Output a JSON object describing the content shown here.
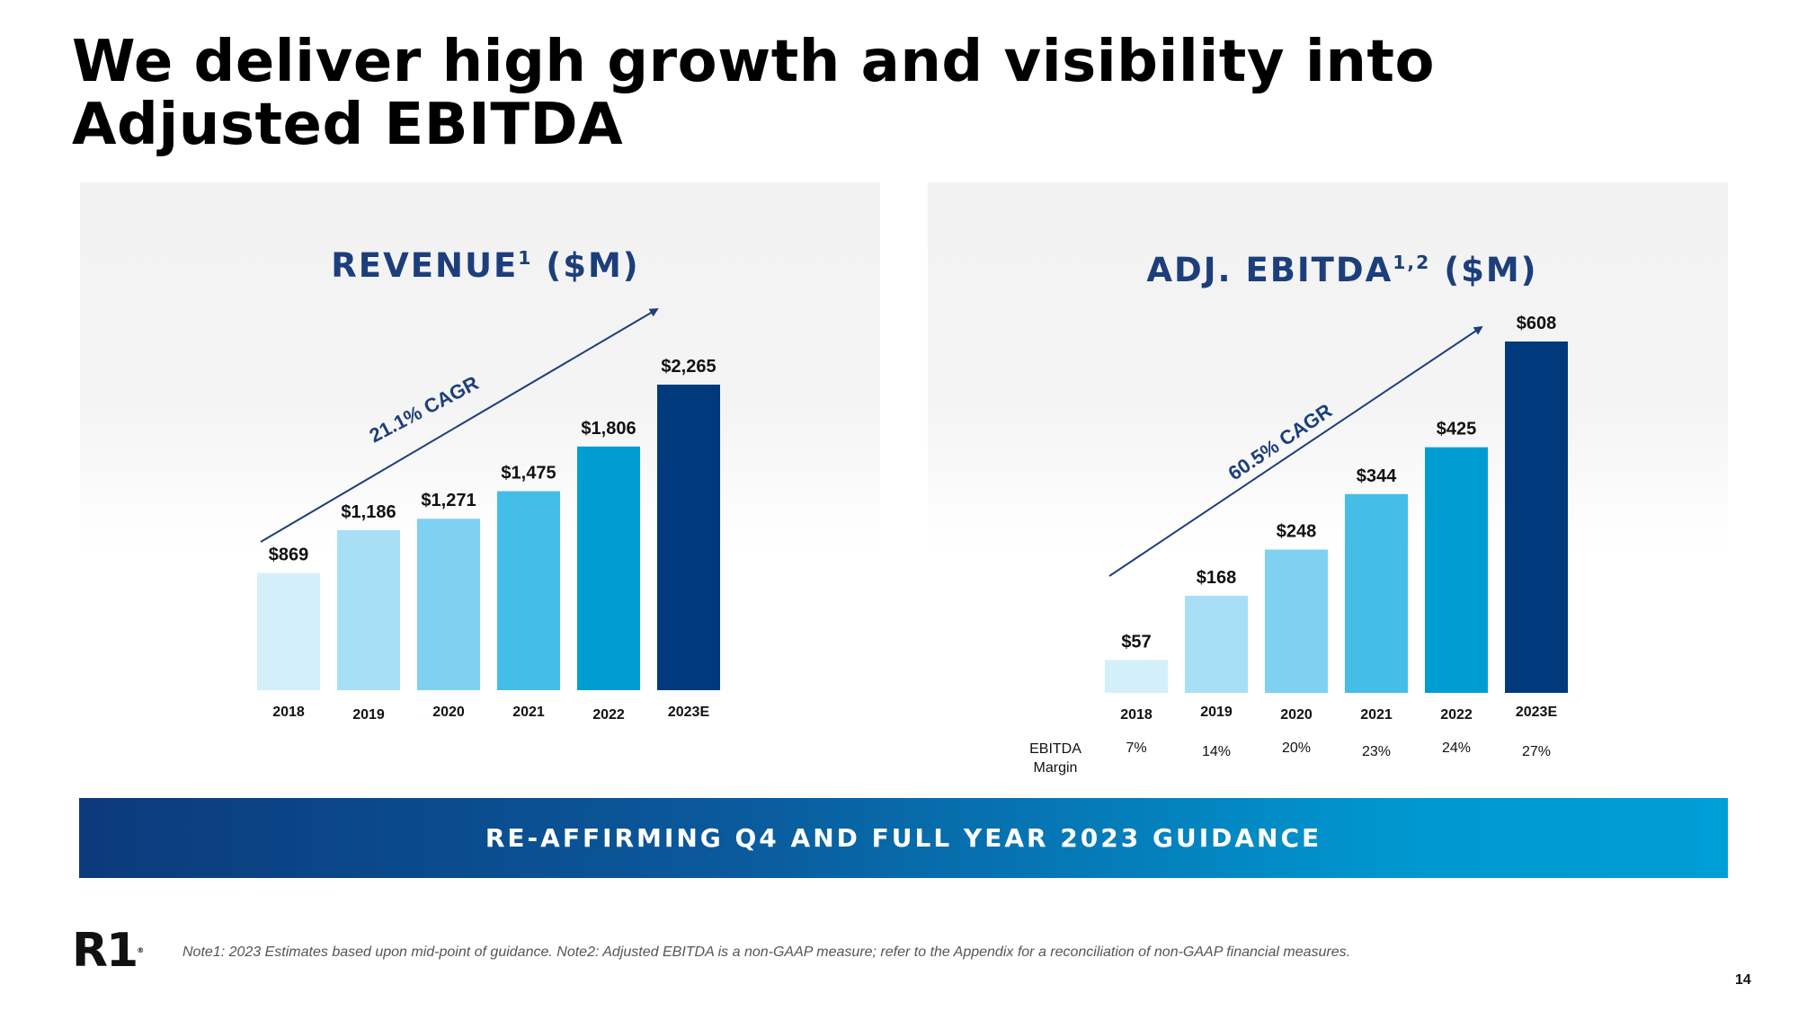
{
  "title_lines": [
    "We deliver high growth and visibility into",
    "Adjusted EBITDA"
  ],
  "colors": {
    "bar_colors": [
      "#d3effa",
      "#a7dff6",
      "#7fd1f1",
      "#45bde9",
      "#009dd3",
      "#003a7c"
    ],
    "accent": "#1c3f7c"
  },
  "chart_data": [
    {
      "type": "bar",
      "title": "REVENUE",
      "title_sup": "1",
      "title_suffix": " ($M)",
      "categories": [
        "2018",
        "2019",
        "2020",
        "2021",
        "2022",
        "2023E"
      ],
      "values": [
        869,
        1186,
        1271,
        1475,
        1806,
        2265
      ],
      "value_labels": [
        "$869",
        "$1,186",
        "$1,271",
        "$1,475",
        "$1,806",
        "$2,265"
      ],
      "ylim": [
        0,
        2265
      ],
      "cagr_label": "21.1% CAGR"
    },
    {
      "type": "bar",
      "title": "ADJ. EBITDA",
      "title_sup": "1,2",
      "title_suffix": " ($M)",
      "categories": [
        "2018",
        "2019",
        "2020",
        "2021",
        "2022",
        "2023E"
      ],
      "values": [
        57,
        168,
        248,
        344,
        425,
        608
      ],
      "value_labels": [
        "$57",
        "$168",
        "$248",
        "$344",
        "$425",
        "$608"
      ],
      "ylim": [
        0,
        608
      ],
      "cagr_label": "60.5% CAGR",
      "margin_row_label": [
        "EBITDA",
        "Margin"
      ],
      "margins": [
        "7%",
        "14%",
        "20%",
        "23%",
        "24%",
        "27%"
      ]
    }
  ],
  "banner": "RE-AFFIRMING Q4 AND FULL YEAR 2023 GUIDANCE",
  "logo": {
    "text": "R1",
    "mark": "®"
  },
  "footnote": "Note1: 2023 Estimates based upon mid-point of guidance. Note2: Adjusted EBITDA is a non-GAAP measure; refer to the Appendix for a reconciliation of non-GAAP financial measures.",
  "page_number": "14"
}
